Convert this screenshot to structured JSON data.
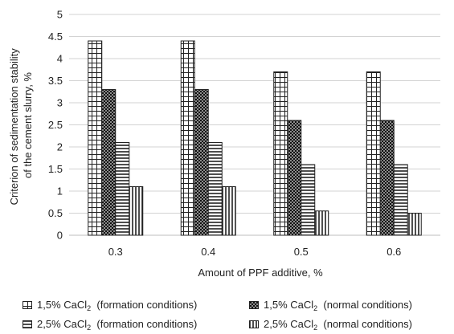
{
  "chart_data": {
    "type": "bar",
    "categories": [
      "0.3",
      "0.4",
      "0.5",
      "0.6"
    ],
    "series": [
      {
        "name": "1,5% CaCl2 (formation conditions)",
        "label_main": "1,5% CaCl",
        "label_sub": "2",
        "label_tail": "(formation conditions)",
        "pattern": "grid",
        "values": [
          4.4,
          4.4,
          3.7,
          3.7
        ]
      },
      {
        "name": "1,5% CaCl2 (normal conditions)",
        "label_main": "1,5% CaCl",
        "label_sub": "2",
        "label_tail": "(normal conditions)",
        "pattern": "crosshatch",
        "values": [
          3.3,
          3.3,
          2.6,
          2.6
        ]
      },
      {
        "name": "2,5% CaCl2 (formation conditions)",
        "label_main": "2,5% CaCl",
        "label_sub": "2",
        "label_tail": "(formation conditions)",
        "pattern": "hlines",
        "values": [
          2.1,
          2.1,
          1.6,
          1.6
        ]
      },
      {
        "name": "2,5% CaCl2 (normal conditions)",
        "label_main": "2,5% CaCl",
        "label_sub": "2",
        "label_tail": "(normal conditions)",
        "pattern": "vlines",
        "values": [
          1.1,
          1.1,
          0.55,
          0.5
        ]
      }
    ],
    "xlabel": "Amount of PPF additive, %",
    "ylabel_line1": "Criterion of sedimentation stability",
    "ylabel_line2": "of the cement slurry, %",
    "ylim": [
      0,
      5
    ],
    "yticks": [
      "0",
      "0.5",
      "1",
      "1.5",
      "2",
      "2.5",
      "3",
      "3.5",
      "4",
      "4.5",
      "5"
    ],
    "grid": true,
    "legend_position": "bottom"
  }
}
